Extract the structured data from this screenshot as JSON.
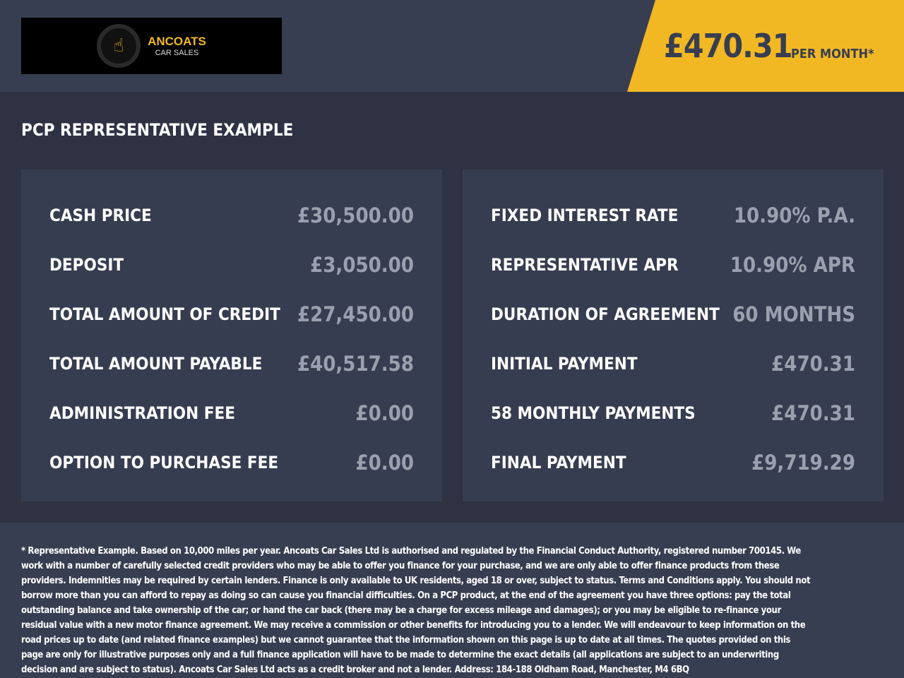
{
  "brand": {
    "name": "ANCOATS",
    "subtitle": "CAR SALES",
    "logo_icon": "pointing-hand-icon"
  },
  "header": {
    "monthly_price": "£470.31",
    "per_month_label": "PER MONTH*",
    "accent_color": "#f2b824"
  },
  "title": "PCP REPRESENTATIVE EXAMPLE",
  "left_panel": [
    {
      "label": "CASH PRICE",
      "value": "£30,500.00"
    },
    {
      "label": "DEPOSIT",
      "value": "£3,050.00"
    },
    {
      "label": "TOTAL AMOUNT OF CREDIT",
      "value": "£27,450.00"
    },
    {
      "label": "TOTAL AMOUNT PAYABLE",
      "value": "£40,517.58"
    },
    {
      "label": "ADMINISTRATION FEE",
      "value": "£0.00"
    },
    {
      "label": "OPTION TO PURCHASE FEE",
      "value": "£0.00"
    }
  ],
  "right_panel": [
    {
      "label": "FIXED INTEREST RATE",
      "value": "10.90% P.A."
    },
    {
      "label": "REPRESENTATIVE APR",
      "value": "10.90% APR"
    },
    {
      "label": "DURATION OF AGREEMENT",
      "value": "60 MONTHS"
    },
    {
      "label": "INITIAL PAYMENT",
      "value": "£470.31"
    },
    {
      "label": "58 MONTHLY PAYMENTS",
      "value": "£470.31"
    },
    {
      "label": "FINAL PAYMENT",
      "value": "£9,719.29"
    }
  ],
  "disclaimer": "* Representative Example. Based on 10,000 miles per year. Ancoats Car Sales Ltd is authorised and regulated by the Financial Conduct Authority, registered number 700145. We work with a number of carefully selected credit providers who may be able to offer you finance for your purchase, and we are only able to offer finance products from these providers. Indemnities may be required by certain lenders. Finance is only available to UK residents, aged 18 or over, subject to status. Terms and Conditions apply. You should not borrow more than you can afford to repay as doing so can cause you financial difficulties. On a PCP product, at the end of the agreement you have three options: pay the total outstanding balance and take ownership of the car; or hand the car back (there may be a charge for excess mileage and damages); or you may be eligible to re-finance your residual value with a new motor finance agreement. We may receive a commission or other benefits for introducing you to a lender. We will endeavour to keep information on the road prices up to date (and related finance examples) but we cannot guarantee that the information shown on this page is up to date at all times. The quotes provided on this page are only for illustrative purposes only and a full finance application will have to be made to determine the exact details (all applications are subject to an underwriting decision and are subject to status). Ancoats Car Sales Ltd acts as a credit broker and not a lender. Address: 184-188 Oldham Road, Manchester, M4 6BQ"
}
